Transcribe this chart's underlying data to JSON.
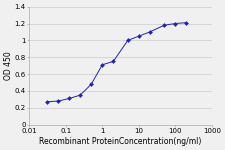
{
  "x": [
    0.031,
    0.063,
    0.125,
    0.25,
    0.5,
    1.0,
    2.0,
    5.0,
    10.0,
    20.0,
    50.0,
    100.0,
    200.0
  ],
  "y": [
    0.27,
    0.28,
    0.31,
    0.35,
    0.48,
    0.71,
    0.75,
    1.0,
    1.05,
    1.1,
    1.18,
    1.2,
    1.21
  ],
  "line_color": "#2222bb",
  "marker": "D",
  "marker_size": 2.0,
  "xlabel": "Recombinant ProteinConcentration(ng/ml)",
  "ylabel": "OD 450",
  "xlim": [
    0.01,
    1000
  ],
  "ylim": [
    0,
    1.4
  ],
  "yticks": [
    0,
    0.2,
    0.4,
    0.6,
    0.8,
    1.0,
    1.2,
    1.4
  ],
  "ytick_labels": [
    "0",
    "0.2",
    "0.4",
    "0.6",
    "0.8",
    "1",
    "1.2",
    "1.4"
  ],
  "xtick_labels": [
    "0.01",
    "0.1",
    "1",
    "10",
    "100",
    "1000"
  ],
  "xtick_vals": [
    0.01,
    0.1,
    1,
    10,
    100,
    1000
  ],
  "grid_color": "#cccccc",
  "background_color": "#f0f0f0",
  "plot_bg": "#f0f0f0",
  "xlabel_fontsize": 5.5,
  "ylabel_fontsize": 5.5,
  "tick_fontsize": 5.0,
  "linewidth": 0.7
}
